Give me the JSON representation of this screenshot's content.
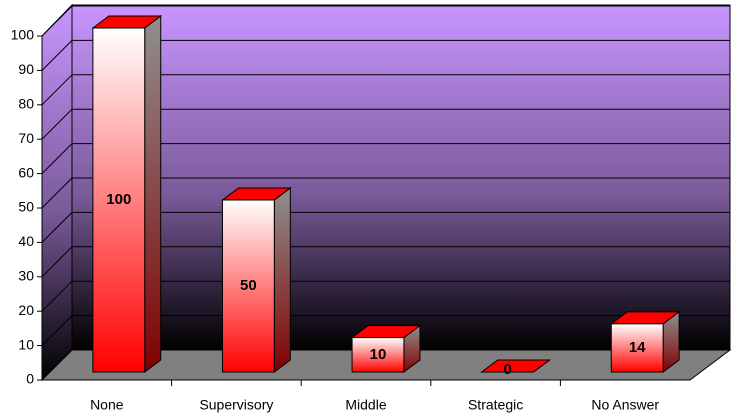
{
  "chart_data": {
    "type": "bar3d",
    "categories": [
      "None",
      "Supervisory",
      "Middle",
      "Strategic",
      "No Answer"
    ],
    "values": [
      100,
      50,
      10,
      0,
      14
    ],
    "color": "#ff0000",
    "ylim": [
      0,
      100
    ],
    "yticks": [
      0,
      10,
      20,
      30,
      40,
      50,
      60,
      70,
      80,
      90,
      100
    ],
    "grid": true
  }
}
